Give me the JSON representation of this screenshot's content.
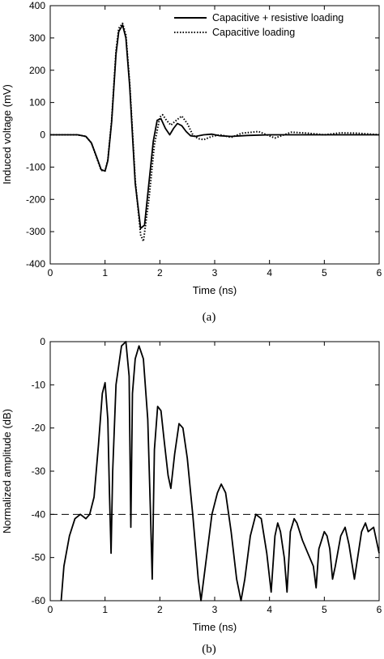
{
  "chart_data": [
    {
      "type": "line",
      "panel_label": "(a)",
      "xlabel": "Time (ns)",
      "ylabel": "Induced voltage (mV)",
      "xlim": [
        0,
        6
      ],
      "ylim": [
        -400,
        400
      ],
      "xticks": [
        "0",
        "1",
        "2",
        "3",
        "4",
        "5",
        "6"
      ],
      "yticks": [
        "400",
        "300",
        "200",
        "100",
        "0",
        "-100",
        "-200",
        "-300",
        "-400"
      ],
      "grid": false,
      "legend_position": "top-right",
      "series": [
        {
          "name": "Capacitive + resistive loading",
          "style": "solid",
          "x": [
            0,
            0.5,
            0.65,
            0.75,
            0.85,
            0.93,
            1.0,
            1.05,
            1.12,
            1.2,
            1.25,
            1.32,
            1.38,
            1.45,
            1.55,
            1.65,
            1.72,
            1.8,
            1.88,
            1.95,
            2.02,
            2.1,
            2.18,
            2.25,
            2.32,
            2.4,
            2.48,
            2.56,
            2.65,
            2.8,
            2.95,
            3.1,
            3.3,
            3.6,
            4.0,
            4.5,
            5.0,
            5.5,
            6.0
          ],
          "y": [
            0,
            0,
            -5,
            -25,
            -70,
            -108,
            -112,
            -80,
            40,
            250,
            320,
            340,
            300,
            150,
            -150,
            -290,
            -280,
            -150,
            -20,
            45,
            50,
            20,
            0,
            20,
            35,
            28,
            10,
            -3,
            -5,
            0,
            2,
            -3,
            -5,
            -2,
            0,
            0,
            0,
            0,
            0
          ]
        },
        {
          "name": "Capacitive loading",
          "style": "dotted",
          "x": [
            0,
            0.5,
            0.65,
            0.75,
            0.85,
            0.93,
            1.0,
            1.05,
            1.12,
            1.2,
            1.25,
            1.32,
            1.38,
            1.45,
            1.55,
            1.65,
            1.7,
            1.8,
            1.9,
            2.0,
            2.05,
            2.12,
            2.2,
            2.3,
            2.4,
            2.5,
            2.6,
            2.7,
            2.8,
            2.95,
            3.1,
            3.3,
            3.5,
            3.8,
            4.1,
            4.4,
            4.7,
            5.0,
            5.3,
            5.6,
            6.0
          ],
          "y": [
            0,
            0,
            -5,
            -25,
            -72,
            -110,
            -112,
            -78,
            45,
            260,
            330,
            345,
            310,
            160,
            -140,
            -310,
            -330,
            -200,
            -30,
            55,
            62,
            45,
            30,
            45,
            58,
            35,
            0,
            -12,
            -15,
            -5,
            0,
            -8,
            5,
            10,
            -10,
            8,
            5,
            0,
            6,
            5,
            0
          ]
        }
      ]
    },
    {
      "type": "line",
      "panel_label": "(b)",
      "xlabel": "Time (ns)",
      "ylabel": "Normalized amplitude (dB)",
      "xlim": [
        0,
        6
      ],
      "ylim": [
        -60,
        0
      ],
      "xticks": [
        "0",
        "1",
        "2",
        "3",
        "4",
        "5",
        "6"
      ],
      "yticks": [
        "0",
        "-10",
        "-20",
        "-30",
        "-40",
        "-50",
        "-60"
      ],
      "grid": false,
      "reference_line": {
        "y": -40,
        "style": "dashed"
      },
      "series": [
        {
          "style": "solid",
          "x": [
            0.2,
            0.25,
            0.35,
            0.45,
            0.55,
            0.65,
            0.72,
            0.8,
            0.88,
            0.95,
            1.0,
            1.05,
            1.08,
            1.11,
            1.14,
            1.2,
            1.3,
            1.38,
            1.44,
            1.47,
            1.5,
            1.55,
            1.62,
            1.7,
            1.78,
            1.83,
            1.86,
            1.9,
            1.96,
            2.02,
            2.08,
            2.15,
            2.2,
            2.27,
            2.35,
            2.42,
            2.5,
            2.6,
            2.7,
            2.75,
            2.8,
            2.95,
            3.05,
            3.12,
            3.2,
            3.3,
            3.4,
            3.48,
            3.55,
            3.65,
            3.75,
            3.85,
            3.95,
            4.03,
            4.1,
            4.15,
            4.2,
            4.27,
            4.32,
            4.38,
            4.45,
            4.5,
            4.6,
            4.7,
            4.8,
            4.85,
            4.9,
            5.0,
            5.05,
            5.1,
            5.15,
            5.2,
            5.3,
            5.38,
            5.45,
            5.55,
            5.62,
            5.68,
            5.75,
            5.8,
            5.9,
            6.0
          ],
          "y": [
            -60,
            -52,
            -45,
            -41,
            -40,
            -41,
            -40,
            -36,
            -24,
            -12,
            -9.5,
            -18,
            -35,
            -49,
            -30,
            -10,
            -1,
            0,
            -8,
            -43,
            -12,
            -4,
            -1,
            -4,
            -18,
            -40,
            -55,
            -25,
            -15,
            -16,
            -23,
            -31,
            -34,
            -26,
            -19,
            -20,
            -27,
            -40,
            -55,
            -60,
            -55,
            -40,
            -35,
            -33,
            -35,
            -44,
            -55,
            -60,
            -55,
            -45,
            -40,
            -41,
            -49,
            -58,
            -45,
            -42,
            -44,
            -50,
            -58,
            -44,
            -41,
            -42,
            -46,
            -49,
            -52,
            -57,
            -48,
            -44,
            -45,
            -48,
            -55,
            -52,
            -45,
            -43,
            -47,
            -55,
            -49,
            -44,
            -42,
            -44,
            -43,
            -49
          ]
        }
      ]
    }
  ]
}
